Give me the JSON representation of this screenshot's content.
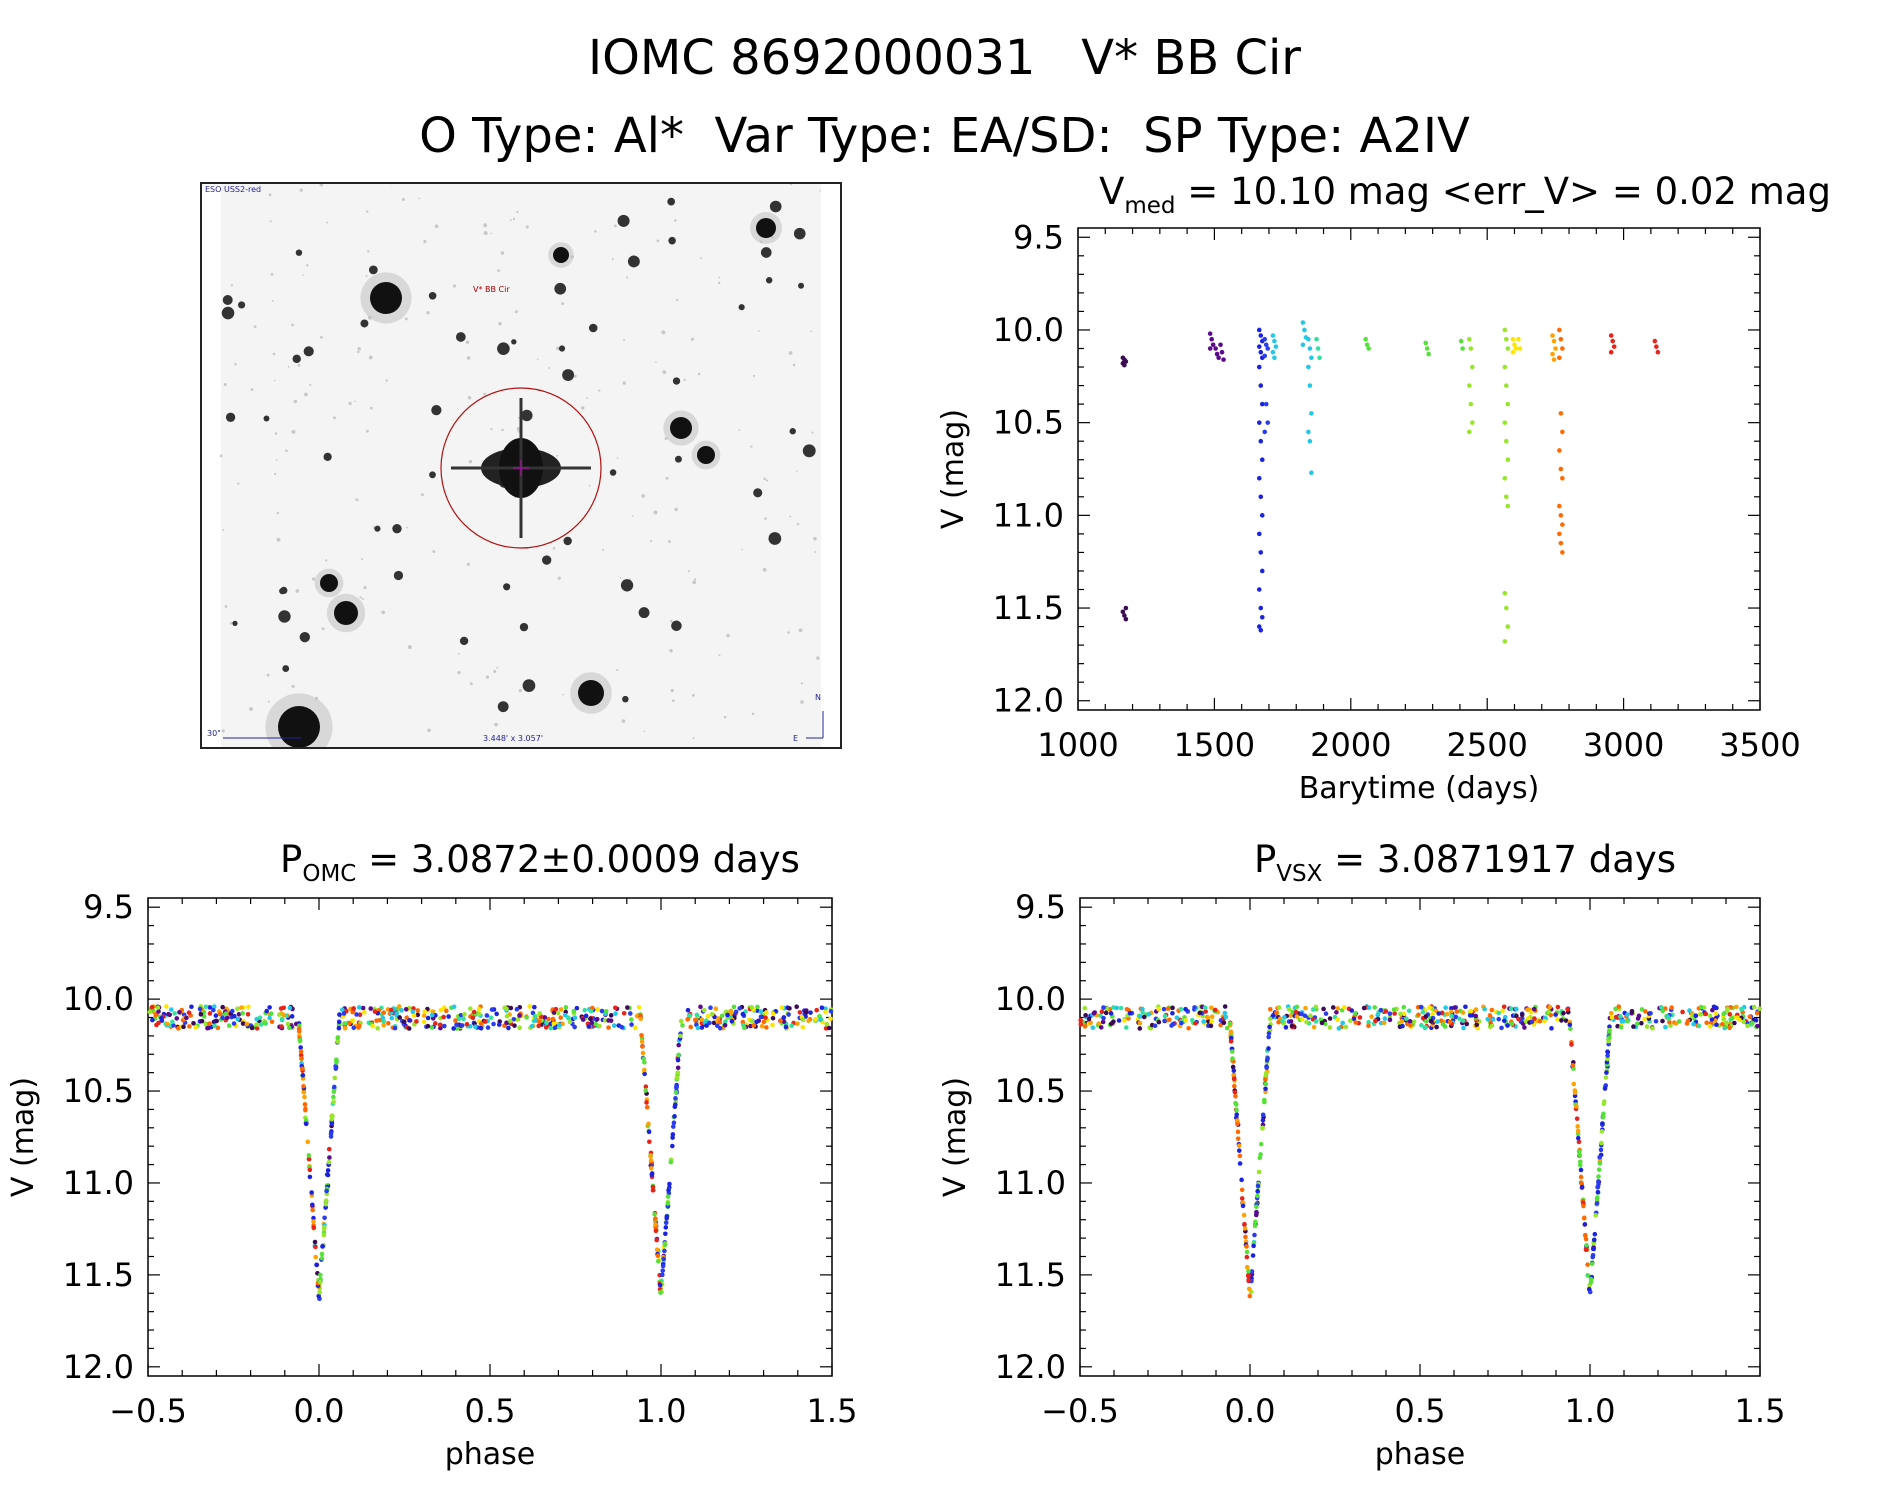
{
  "header": {
    "title_line1": "IOMC 8692000031   V* BB Cir",
    "title_line2": "O Type: Al*  Var Type: EA/SD:  SP Type: A2IV"
  },
  "finding_chart": {
    "survey_label": "ESO USS2-red",
    "target_label": "V* BB Cir",
    "scale_label": "30\"",
    "fov_label": "3.448' x 3.057'",
    "north_label": "N",
    "east_label": "E",
    "marker_color": "#b01010"
  },
  "colors": {
    "palette": [
      "#3b0a55",
      "#5a0a8c",
      "#1b23e0",
      "#2a3cf0",
      "#22c8e6",
      "#33e0a0",
      "#55e03a",
      "#98e62a",
      "#ffe600",
      "#ffa100",
      "#ff6a00",
      "#e8231a"
    ]
  },
  "chart_data": [
    {
      "id": "lightcurve",
      "type": "scatter",
      "title_main": "V",
      "title_sub": "med",
      "title_rest": " = 10.10 mag <err_V> = 0.02 mag",
      "xlabel": "Barytime (days)",
      "ylabel": "V (mag)",
      "xlim": [
        1000,
        3500
      ],
      "ylim": [
        12.05,
        9.45
      ],
      "xticks": [
        "1000",
        "1500",
        "2000",
        "2500",
        "3000",
        "3500"
      ],
      "yticks": [
        "9.5",
        "10.0",
        "10.5",
        "11.0",
        "11.5",
        "12.0"
      ],
      "groups": [
        {
          "t": 1170,
          "color_index": 0,
          "mags": [
            10.15,
            10.16,
            10.17,
            10.18,
            10.19,
            11.5,
            11.52,
            11.54,
            11.56
          ]
        },
        {
          "t": 1490,
          "color_index": 1,
          "mags": [
            10.02,
            10.05,
            10.08,
            10.1
          ]
        },
        {
          "t": 1510,
          "color_index": 1,
          "mags": [
            10.1,
            10.13,
            10.15
          ]
        },
        {
          "t": 1528,
          "color_index": 1,
          "mags": [
            10.08,
            10.12,
            10.16
          ]
        },
        {
          "t": 1670,
          "color_index": 2,
          "mags": [
            10.0,
            10.03,
            10.06,
            10.09,
            10.12,
            10.15,
            10.2,
            10.3,
            10.4,
            10.5,
            10.6,
            10.7,
            10.8,
            10.9,
            11.0,
            11.1,
            11.2,
            11.3,
            11.4,
            11.5,
            11.55,
            11.6,
            11.62
          ]
        },
        {
          "t": 1690,
          "color_index": 3,
          "mags": [
            10.05,
            10.08,
            10.1,
            10.14,
            10.4,
            10.5,
            10.55
          ]
        },
        {
          "t": 1720,
          "color_index": 4,
          "mags": [
            10.03,
            10.06,
            10.09,
            10.12,
            10.15
          ]
        },
        {
          "t": 1830,
          "color_index": 4,
          "mags": [
            9.96,
            10.0,
            10.04,
            10.08
          ]
        },
        {
          "t": 1850,
          "color_index": 4,
          "mags": [
            10.05,
            10.1,
            10.15,
            10.2,
            10.3,
            10.45,
            10.55,
            10.6,
            10.77
          ]
        },
        {
          "t": 1880,
          "color_index": 5,
          "mags": [
            10.05,
            10.1,
            10.15
          ]
        },
        {
          "t": 2060,
          "color_index": 6,
          "mags": [
            10.05,
            10.08,
            10.1
          ]
        },
        {
          "t": 2280,
          "color_index": 6,
          "mags": [
            10.07,
            10.1,
            10.13
          ]
        },
        {
          "t": 2410,
          "color_index": 6,
          "mags": [
            10.06,
            10.1
          ]
        },
        {
          "t": 2440,
          "color_index": 7,
          "mags": [
            10.05,
            10.1,
            10.2,
            10.3,
            10.4,
            10.5,
            10.55
          ]
        },
        {
          "t": 2570,
          "color_index": 7,
          "mags": [
            10.0,
            10.05,
            10.1,
            10.2,
            10.3,
            10.4,
            10.5,
            10.6,
            10.7,
            10.8,
            10.9,
            10.95,
            11.42,
            11.5,
            11.6,
            11.68
          ]
        },
        {
          "t": 2600,
          "color_index": 8,
          "mags": [
            10.05,
            10.08,
            10.1,
            10.12
          ]
        },
        {
          "t": 2620,
          "color_index": 8,
          "mags": [
            10.05,
            10.1
          ]
        },
        {
          "t": 2745,
          "color_index": 9,
          "mags": [
            10.03,
            10.06,
            10.1,
            10.13,
            10.16
          ]
        },
        {
          "t": 2770,
          "color_index": 10,
          "mags": [
            10.0,
            10.05,
            10.1,
            10.15,
            10.45,
            10.55,
            10.65,
            10.75,
            10.8,
            10.95,
            11.0,
            11.05,
            11.1,
            11.15,
            11.2
          ]
        },
        {
          "t": 2960,
          "color_index": 11,
          "mags": [
            10.03,
            10.06,
            10.09,
            10.12
          ]
        },
        {
          "t": 3120,
          "color_index": 11,
          "mags": [
            10.06,
            10.09,
            10.12
          ]
        }
      ]
    },
    {
      "id": "phase_omc",
      "type": "scatter",
      "title_main": "P",
      "title_sub": "OMC",
      "title_rest": " = 3.0872±0.0009 days",
      "xlabel": "phase",
      "ylabel": "V (mag)",
      "xlim": [
        -0.5,
        1.5
      ],
      "ylim": [
        12.05,
        9.45
      ],
      "xticks": [
        "−0.5",
        "0.0",
        "0.5",
        "1.0",
        "1.5"
      ],
      "yticks": [
        "9.5",
        "10.0",
        "10.5",
        "11.0",
        "11.5",
        "12.0"
      ],
      "eclipse_phase": 0.0,
      "eclipse_depth_mag": 11.62,
      "eclipse_half_width": 0.06,
      "baseline_mag": 10.1
    },
    {
      "id": "phase_vsx",
      "type": "scatter",
      "title_main": "P",
      "title_sub": "VSX",
      "title_rest": " = 3.0871917 days",
      "xlabel": "phase",
      "ylabel": "V (mag)",
      "xlim": [
        -0.5,
        1.5
      ],
      "ylim": [
        12.05,
        9.45
      ],
      "xticks": [
        "−0.5",
        "0.0",
        "0.5",
        "1.0",
        "1.5"
      ],
      "yticks": [
        "9.5",
        "10.0",
        "10.5",
        "11.0",
        "11.5",
        "12.0"
      ],
      "eclipse_phase": 0.0,
      "eclipse_depth_mag": 11.62,
      "eclipse_half_width": 0.06,
      "baseline_mag": 10.1
    }
  ]
}
